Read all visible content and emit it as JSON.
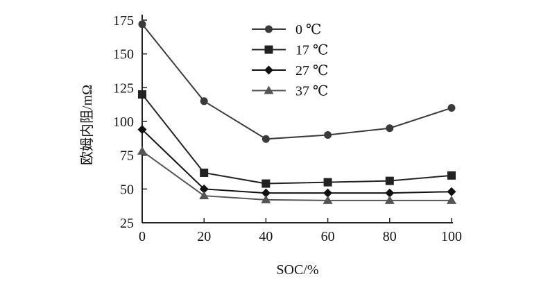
{
  "chart_data": {
    "type": "line",
    "title": "",
    "xlabel": "SOC/%",
    "ylabel": "欧姆内阻/mΩ",
    "x": [
      0,
      20,
      40,
      60,
      80,
      100
    ],
    "xlim": [
      0,
      100
    ],
    "ylim": [
      25,
      175
    ],
    "xticks": [
      "0",
      "20",
      "40",
      "60",
      "80",
      "100"
    ],
    "yticks": [
      "25",
      "50",
      "75",
      "100",
      "125",
      "150",
      "175"
    ],
    "grid": false,
    "legend_position": "top-center",
    "series": [
      {
        "name": "0 ℃",
        "marker": "circle",
        "color": "#3a3a3a",
        "values": [
          172,
          115,
          87,
          90,
          95,
          110
        ]
      },
      {
        "name": "17 ℃",
        "marker": "square",
        "color": "#222222",
        "values": [
          120,
          62,
          54,
          55,
          56,
          60
        ]
      },
      {
        "name": "27 ℃",
        "marker": "diamond",
        "color": "#111111",
        "values": [
          94,
          50,
          47,
          47,
          47,
          48
        ]
      },
      {
        "name": "37 ℃",
        "marker": "triangle",
        "color": "#555555",
        "values": [
          78,
          45,
          42,
          41.5,
          41.5,
          41.5
        ]
      }
    ]
  }
}
